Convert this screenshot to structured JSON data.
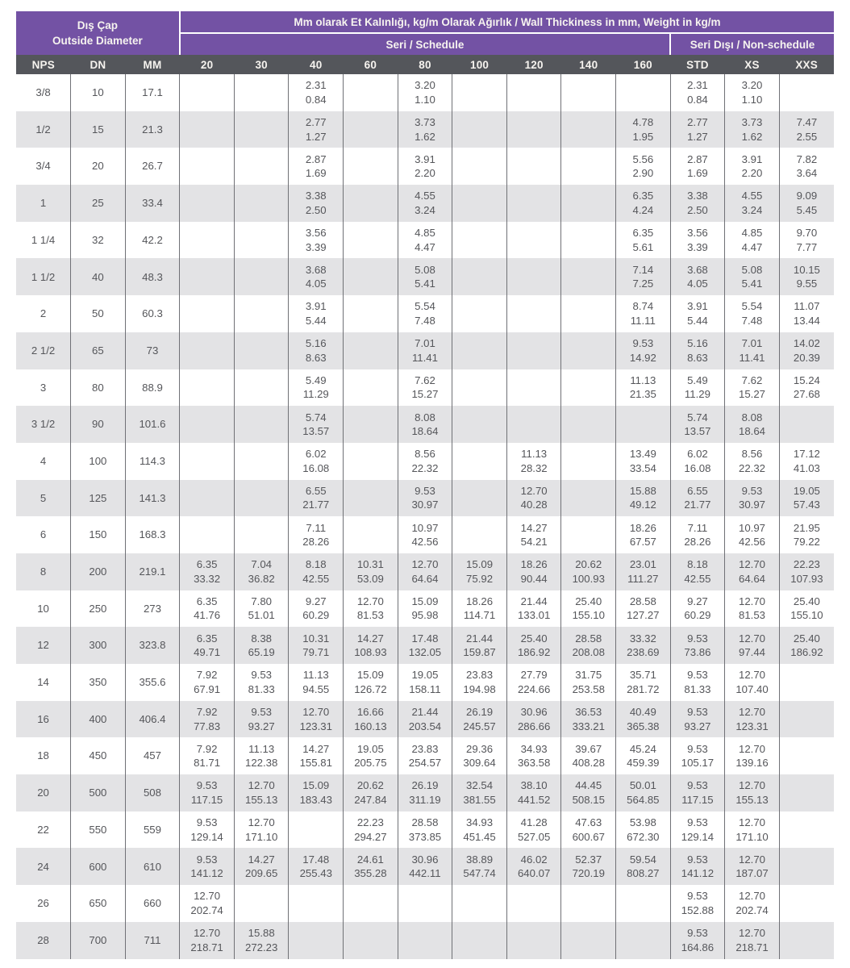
{
  "colors": {
    "header_purple": "#7352A4",
    "header_dark_gray": "#54565B",
    "row_alternate_gray": "#E3E3E5",
    "row_white": "#FFFFFF",
    "body_text": "#55565A",
    "header_text": "#F6F3EF",
    "column_divider": "#707176"
  },
  "table": {
    "header": {
      "od_tr": "Dış Çap",
      "od_en": "Outside Diameter",
      "main_title": "Mm olarak Et Kalınlığı, kg/m Olarak Ağırlık / Wall Thickiness in mm, Weight in kg/m",
      "schedule_group": "Seri / Schedule",
      "non_schedule_group": "Seri Dışı / Non-schedule",
      "columns": [
        "NPS",
        "DN",
        "MM",
        "20",
        "30",
        "40",
        "60",
        "80",
        "100",
        "120",
        "140",
        "160",
        "STD",
        "XS",
        "XXS"
      ]
    },
    "rows": [
      {
        "nps": "3/8",
        "dn": "10",
        "mm": "17.1",
        "cells": [
          null,
          null,
          [
            "2.31",
            "0.84"
          ],
          null,
          [
            "3.20",
            "1.10"
          ],
          null,
          null,
          null,
          null,
          [
            "2.31",
            "0.84"
          ],
          [
            "3.20",
            "1.10"
          ],
          null
        ]
      },
      {
        "nps": "1/2",
        "dn": "15",
        "mm": "21.3",
        "cells": [
          null,
          null,
          [
            "2.77",
            "1.27"
          ],
          null,
          [
            "3.73",
            "1.62"
          ],
          null,
          null,
          null,
          [
            "4.78",
            "1.95"
          ],
          [
            "2.77",
            "1.27"
          ],
          [
            "3.73",
            "1.62"
          ],
          [
            "7.47",
            "2.55"
          ]
        ]
      },
      {
        "nps": "3/4",
        "dn": "20",
        "mm": "26.7",
        "cells": [
          null,
          null,
          [
            "2.87",
            "1.69"
          ],
          null,
          [
            "3.91",
            "2.20"
          ],
          null,
          null,
          null,
          [
            "5.56",
            "2.90"
          ],
          [
            "2.87",
            "1.69"
          ],
          [
            "3.91",
            "2.20"
          ],
          [
            "7.82",
            "3.64"
          ]
        ]
      },
      {
        "nps": "1",
        "dn": "25",
        "mm": "33.4",
        "cells": [
          null,
          null,
          [
            "3.38",
            "2.50"
          ],
          null,
          [
            "4.55",
            "3.24"
          ],
          null,
          null,
          null,
          [
            "6.35",
            "4.24"
          ],
          [
            "3.38",
            "2.50"
          ],
          [
            "4.55",
            "3.24"
          ],
          [
            "9.09",
            "5.45"
          ]
        ]
      },
      {
        "nps": "1 1/4",
        "dn": "32",
        "mm": "42.2",
        "cells": [
          null,
          null,
          [
            "3.56",
            "3.39"
          ],
          null,
          [
            "4.85",
            "4.47"
          ],
          null,
          null,
          null,
          [
            "6.35",
            "5.61"
          ],
          [
            "3.56",
            "3.39"
          ],
          [
            "4.85",
            "4.47"
          ],
          [
            "9.70",
            "7.77"
          ]
        ]
      },
      {
        "nps": "1 1/2",
        "dn": "40",
        "mm": "48.3",
        "cells": [
          null,
          null,
          [
            "3.68",
            "4.05"
          ],
          null,
          [
            "5.08",
            "5.41"
          ],
          null,
          null,
          null,
          [
            "7.14",
            "7.25"
          ],
          [
            "3.68",
            "4.05"
          ],
          [
            "5.08",
            "5.41"
          ],
          [
            "10.15",
            "9.55"
          ]
        ]
      },
      {
        "nps": "2",
        "dn": "50",
        "mm": "60.3",
        "cells": [
          null,
          null,
          [
            "3.91",
            "5.44"
          ],
          null,
          [
            "5.54",
            "7.48"
          ],
          null,
          null,
          null,
          [
            "8.74",
            "11.11"
          ],
          [
            "3.91",
            "5.44"
          ],
          [
            "5.54",
            "7.48"
          ],
          [
            "11.07",
            "13.44"
          ]
        ]
      },
      {
        "nps": "2 1/2",
        "dn": "65",
        "mm": "73",
        "cells": [
          null,
          null,
          [
            "5.16",
            "8.63"
          ],
          null,
          [
            "7.01",
            "11.41"
          ],
          null,
          null,
          null,
          [
            "9.53",
            "14.92"
          ],
          [
            "5.16",
            "8.63"
          ],
          [
            "7.01",
            "11.41"
          ],
          [
            "14.02",
            "20.39"
          ]
        ]
      },
      {
        "nps": "3",
        "dn": "80",
        "mm": "88.9",
        "cells": [
          null,
          null,
          [
            "5.49",
            "11.29"
          ],
          null,
          [
            "7.62",
            "15.27"
          ],
          null,
          null,
          null,
          [
            "11.13",
            "21.35"
          ],
          [
            "5.49",
            "11.29"
          ],
          [
            "7.62",
            "15.27"
          ],
          [
            "15.24",
            "27.68"
          ]
        ]
      },
      {
        "nps": "3 1/2",
        "dn": "90",
        "mm": "101.6",
        "cells": [
          null,
          null,
          [
            "5.74",
            "13.57"
          ],
          null,
          [
            "8.08",
            "18.64"
          ],
          null,
          null,
          null,
          null,
          [
            "5.74",
            "13.57"
          ],
          [
            "8.08",
            "18.64"
          ],
          null
        ]
      },
      {
        "nps": "4",
        "dn": "100",
        "mm": "114.3",
        "cells": [
          null,
          null,
          [
            "6.02",
            "16.08"
          ],
          null,
          [
            "8.56",
            "22.32"
          ],
          null,
          [
            "11.13",
            "28.32"
          ],
          null,
          [
            "13.49",
            "33.54"
          ],
          [
            "6.02",
            "16.08"
          ],
          [
            "8.56",
            "22.32"
          ],
          [
            "17.12",
            "41.03"
          ]
        ]
      },
      {
        "nps": "5",
        "dn": "125",
        "mm": "141.3",
        "cells": [
          null,
          null,
          [
            "6.55",
            "21.77"
          ],
          null,
          [
            "9.53",
            "30.97"
          ],
          null,
          [
            "12.70",
            "40.28"
          ],
          null,
          [
            "15.88",
            "49.12"
          ],
          [
            "6.55",
            "21.77"
          ],
          [
            "9.53",
            "30.97"
          ],
          [
            "19.05",
            "57.43"
          ]
        ]
      },
      {
        "nps": "6",
        "dn": "150",
        "mm": "168.3",
        "cells": [
          null,
          null,
          [
            "7.11",
            "28.26"
          ],
          null,
          [
            "10.97",
            "42.56"
          ],
          null,
          [
            "14.27",
            "54.21"
          ],
          null,
          [
            "18.26",
            "67.57"
          ],
          [
            "7.11",
            "28.26"
          ],
          [
            "10.97",
            "42.56"
          ],
          [
            "21.95",
            "79.22"
          ]
        ]
      },
      {
        "nps": "8",
        "dn": "200",
        "mm": "219.1",
        "cells": [
          [
            "6.35",
            "33.32"
          ],
          [
            "7.04",
            "36.82"
          ],
          [
            "8.18",
            "42.55"
          ],
          [
            "10.31",
            "53.09"
          ],
          [
            "12.70",
            "64.64"
          ],
          [
            "15.09",
            "75.92"
          ],
          [
            "18.26",
            "90.44"
          ],
          [
            "20.62",
            "100.93"
          ],
          [
            "23.01",
            "111.27"
          ],
          [
            "8.18",
            "42.55"
          ],
          [
            "12.70",
            "64.64"
          ],
          [
            "22.23",
            "107.93"
          ]
        ]
      },
      {
        "nps": "10",
        "dn": "250",
        "mm": "273",
        "cells": [
          [
            "6.35",
            "41.76"
          ],
          [
            "7.80",
            "51.01"
          ],
          [
            "9.27",
            "60.29"
          ],
          [
            "12.70",
            "81.53"
          ],
          [
            "15.09",
            "95.98"
          ],
          [
            "18.26",
            "114.71"
          ],
          [
            "21.44",
            "133.01"
          ],
          [
            "25.40",
            "155.10"
          ],
          [
            "28.58",
            "127.27"
          ],
          [
            "9.27",
            "60.29"
          ],
          [
            "12.70",
            "81.53"
          ],
          [
            "25.40",
            "155.10"
          ]
        ]
      },
      {
        "nps": "12",
        "dn": "300",
        "mm": "323.8",
        "cells": [
          [
            "6.35",
            "49.71"
          ],
          [
            "8.38",
            "65.19"
          ],
          [
            "10.31",
            "79.71"
          ],
          [
            "14.27",
            "108.93"
          ],
          [
            "17.48",
            "132.05"
          ],
          [
            "21.44",
            "159.87"
          ],
          [
            "25.40",
            "186.92"
          ],
          [
            "28.58",
            "208.08"
          ],
          [
            "33.32",
            "238.69"
          ],
          [
            "9.53",
            "73.86"
          ],
          [
            "12.70",
            "97.44"
          ],
          [
            "25.40",
            "186.92"
          ]
        ]
      },
      {
        "nps": "14",
        "dn": "350",
        "mm": "355.6",
        "cells": [
          [
            "7.92",
            "67.91"
          ],
          [
            "9.53",
            "81.33"
          ],
          [
            "11.13",
            "94.55"
          ],
          [
            "15.09",
            "126.72"
          ],
          [
            "19.05",
            "158.11"
          ],
          [
            "23.83",
            "194.98"
          ],
          [
            "27.79",
            "224.66"
          ],
          [
            "31.75",
            "253.58"
          ],
          [
            "35.71",
            "281.72"
          ],
          [
            "9.53",
            "81.33"
          ],
          [
            "12.70",
            "107.40"
          ],
          null
        ]
      },
      {
        "nps": "16",
        "dn": "400",
        "mm": "406.4",
        "cells": [
          [
            "7.92",
            "77.83"
          ],
          [
            "9.53",
            "93.27"
          ],
          [
            "12.70",
            "123.31"
          ],
          [
            "16.66",
            "160.13"
          ],
          [
            "21.44",
            "203.54"
          ],
          [
            "26.19",
            "245.57"
          ],
          [
            "30.96",
            "286.66"
          ],
          [
            "36.53",
            "333.21"
          ],
          [
            "40.49",
            "365.38"
          ],
          [
            "9.53",
            "93.27"
          ],
          [
            "12.70",
            "123.31"
          ],
          null
        ]
      },
      {
        "nps": "18",
        "dn": "450",
        "mm": "457",
        "cells": [
          [
            "7.92",
            "81.71"
          ],
          [
            "11.13",
            "122.38"
          ],
          [
            "14.27",
            "155.81"
          ],
          [
            "19.05",
            "205.75"
          ],
          [
            "23.83",
            "254.57"
          ],
          [
            "29.36",
            "309.64"
          ],
          [
            "34.93",
            "363.58"
          ],
          [
            "39.67",
            "408.28"
          ],
          [
            "45.24",
            "459.39"
          ],
          [
            "9.53",
            "105.17"
          ],
          [
            "12.70",
            "139.16"
          ],
          null
        ]
      },
      {
        "nps": "20",
        "dn": "500",
        "mm": "508",
        "cells": [
          [
            "9.53",
            "117.15"
          ],
          [
            "12.70",
            "155.13"
          ],
          [
            "15.09",
            "183.43"
          ],
          [
            "20.62",
            "247.84"
          ],
          [
            "26.19",
            "311.19"
          ],
          [
            "32.54",
            "381.55"
          ],
          [
            "38.10",
            "441.52"
          ],
          [
            "44.45",
            "508.15"
          ],
          [
            "50.01",
            "564.85"
          ],
          [
            "9.53",
            "117.15"
          ],
          [
            "12.70",
            "155.13"
          ],
          null
        ]
      },
      {
        "nps": "22",
        "dn": "550",
        "mm": "559",
        "cells": [
          [
            "9.53",
            "129.14"
          ],
          [
            "12.70",
            "171.10"
          ],
          null,
          [
            "22.23",
            "294.27"
          ],
          [
            "28.58",
            "373.85"
          ],
          [
            "34.93",
            "451.45"
          ],
          [
            "41.28",
            "527.05"
          ],
          [
            "47.63",
            "600.67"
          ],
          [
            "53.98",
            "672.30"
          ],
          [
            "9.53",
            "129.14"
          ],
          [
            "12.70",
            "171.10"
          ],
          null
        ]
      },
      {
        "nps": "24",
        "dn": "600",
        "mm": "610",
        "cells": [
          [
            "9.53",
            "141.12"
          ],
          [
            "14.27",
            "209.65"
          ],
          [
            "17.48",
            "255.43"
          ],
          [
            "24.61",
            "355.28"
          ],
          [
            "30.96",
            "442.11"
          ],
          [
            "38.89",
            "547.74"
          ],
          [
            "46.02",
            "640.07"
          ],
          [
            "52.37",
            "720.19"
          ],
          [
            "59.54",
            "808.27"
          ],
          [
            "9.53",
            "141.12"
          ],
          [
            "12.70",
            "187.07"
          ],
          null
        ]
      },
      {
        "nps": "26",
        "dn": "650",
        "mm": "660",
        "cells": [
          [
            "12.70",
            "202.74"
          ],
          null,
          null,
          null,
          null,
          null,
          null,
          null,
          null,
          [
            "9.53",
            "152.88"
          ],
          [
            "12.70",
            "202.74"
          ],
          null
        ]
      },
      {
        "nps": "28",
        "dn": "700",
        "mm": "711",
        "cells": [
          [
            "12.70",
            "218.71"
          ],
          [
            "15.88",
            "272.23"
          ],
          null,
          null,
          null,
          null,
          null,
          null,
          null,
          [
            "9.53",
            "164.86"
          ],
          [
            "12.70",
            "218.71"
          ],
          null
        ]
      }
    ]
  }
}
